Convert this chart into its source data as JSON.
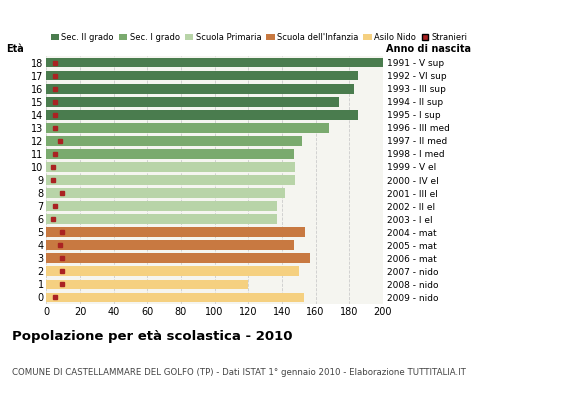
{
  "ages": [
    18,
    17,
    16,
    15,
    14,
    13,
    12,
    11,
    10,
    9,
    8,
    7,
    6,
    5,
    4,
    3,
    2,
    1,
    0
  ],
  "bar_values": [
    200,
    185,
    183,
    174,
    185,
    168,
    152,
    147,
    148,
    148,
    142,
    137,
    137,
    154,
    147,
    157,
    150,
    120,
    153
  ],
  "stranieri_values": [
    5,
    5,
    5,
    5,
    5,
    5,
    8,
    5,
    4,
    4,
    9,
    5,
    4,
    9,
    8,
    9,
    9,
    9,
    5
  ],
  "bar_colors": [
    "#4a7c4e",
    "#4a7c4e",
    "#4a7c4e",
    "#4a7c4e",
    "#4a7c4e",
    "#7aaa6e",
    "#7aaa6e",
    "#7aaa6e",
    "#b8d4a8",
    "#b8d4a8",
    "#b8d4a8",
    "#b8d4a8",
    "#b8d4a8",
    "#c87941",
    "#c87941",
    "#c87941",
    "#f5d080",
    "#f5d080",
    "#f5d080"
  ],
  "right_labels": [
    "1991 - V sup",
    "1992 - VI sup",
    "1993 - III sup",
    "1994 - II sup",
    "1995 - I sup",
    "1996 - III med",
    "1997 - II med",
    "1998 - I med",
    "1999 - V el",
    "2000 - IV el",
    "2001 - III el",
    "2002 - II el",
    "2003 - I el",
    "2004 - mat",
    "2005 - mat",
    "2006 - mat",
    "2007 - nido",
    "2008 - nido",
    "2009 - nido"
  ],
  "legend_labels": [
    "Sec. II grado",
    "Sec. I grado",
    "Scuola Primaria",
    "Scuola dell'Infanzia",
    "Asilo Nido",
    "Stranieri"
  ],
  "legend_colors": [
    "#4a7c4e",
    "#7aaa6e",
    "#b8d4a8",
    "#c87941",
    "#f5d080",
    "#aa2222"
  ],
  "stranieri_color": "#aa2222",
  "title": "Popolazione per età scolastica - 2010",
  "subtitle": "COMUNE DI CASTELLAMMARE DEL GOLFO (TP) - Dati ISTAT 1° gennaio 2010 - Elaborazione TUTTITALIA.IT",
  "ylabel_left": "Età",
  "ylabel_right": "Anno di nascita",
  "xlim": [
    0,
    200
  ],
  "xticks": [
    0,
    20,
    40,
    60,
    80,
    100,
    120,
    140,
    160,
    180,
    200
  ],
  "bg_color": "#ffffff",
  "plot_bg": "#f5f5f0",
  "grid_color": "#cccccc"
}
